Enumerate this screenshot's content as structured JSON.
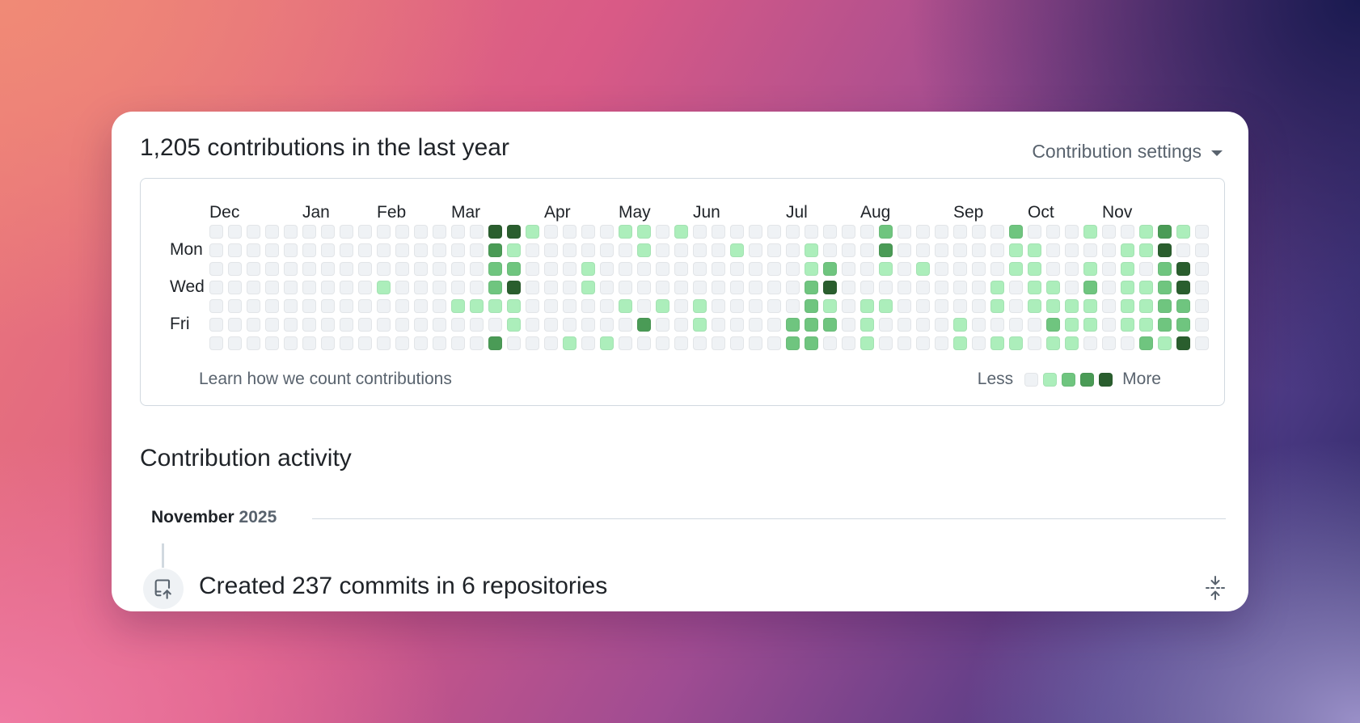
{
  "header": {
    "title": "1,205 contributions in the last year",
    "settings_label": "Contribution settings"
  },
  "graph": {
    "months": [
      "Dec",
      "Jan",
      "Feb",
      "Mar",
      "Apr",
      "May",
      "Jun",
      "Jul",
      "Aug",
      "Sep",
      "Oct",
      "Nov"
    ],
    "month_start_week": [
      0,
      5,
      9,
      13,
      18,
      22,
      26,
      31,
      35,
      40,
      44,
      48
    ],
    "day_labels": [
      {
        "row": 1,
        "label": "Mon"
      },
      {
        "row": 3,
        "label": "Wed"
      },
      {
        "row": 5,
        "label": "Fri"
      }
    ],
    "level_colors": [
      "#eff2f5",
      "#aceebb",
      "#6fc57f",
      "#4a9b56",
      "#2a5e2e"
    ],
    "weeks": [
      [
        0,
        0,
        0,
        0,
        0,
        0,
        0
      ],
      [
        0,
        0,
        0,
        0,
        0,
        0,
        0
      ],
      [
        0,
        0,
        0,
        0,
        0,
        0,
        0
      ],
      [
        0,
        0,
        0,
        0,
        0,
        0,
        0
      ],
      [
        0,
        0,
        0,
        0,
        0,
        0,
        0
      ],
      [
        0,
        0,
        0,
        0,
        0,
        0,
        0
      ],
      [
        0,
        0,
        0,
        0,
        0,
        0,
        0
      ],
      [
        0,
        0,
        0,
        0,
        0,
        0,
        0
      ],
      [
        0,
        0,
        0,
        0,
        0,
        0,
        0
      ],
      [
        0,
        0,
        0,
        1,
        0,
        0,
        0
      ],
      [
        0,
        0,
        0,
        0,
        0,
        0,
        0
      ],
      [
        0,
        0,
        0,
        0,
        0,
        0,
        0
      ],
      [
        0,
        0,
        0,
        0,
        0,
        0,
        0
      ],
      [
        0,
        0,
        0,
        0,
        1,
        0,
        0
      ],
      [
        0,
        0,
        0,
        0,
        1,
        0,
        0
      ],
      [
        4,
        3,
        2,
        2,
        1,
        0,
        3
      ],
      [
        4,
        1,
        2,
        4,
        1,
        1,
        0
      ],
      [
        1,
        0,
        0,
        0,
        0,
        0,
        0
      ],
      [
        0,
        0,
        0,
        0,
        0,
        0,
        0
      ],
      [
        0,
        0,
        0,
        0,
        0,
        0,
        1
      ],
      [
        0,
        0,
        1,
        1,
        0,
        0,
        0
      ],
      [
        0,
        0,
        0,
        0,
        0,
        0,
        1
      ],
      [
        1,
        0,
        0,
        0,
        1,
        0,
        0
      ],
      [
        1,
        1,
        0,
        0,
        0,
        3,
        0
      ],
      [
        0,
        0,
        0,
        0,
        1,
        0,
        0
      ],
      [
        1,
        0,
        0,
        0,
        0,
        0,
        0
      ],
      [
        0,
        0,
        0,
        0,
        1,
        1,
        0
      ],
      [
        0,
        0,
        0,
        0,
        0,
        0,
        0
      ],
      [
        0,
        1,
        0,
        0,
        0,
        0,
        0
      ],
      [
        0,
        0,
        0,
        0,
        0,
        0,
        0
      ],
      [
        0,
        0,
        0,
        0,
        0,
        0,
        0
      ],
      [
        0,
        0,
        0,
        0,
        0,
        2,
        2
      ],
      [
        0,
        1,
        1,
        2,
        2,
        2,
        2
      ],
      [
        0,
        0,
        2,
        4,
        1,
        2,
        0
      ],
      [
        0,
        0,
        0,
        0,
        0,
        0,
        0
      ],
      [
        0,
        0,
        0,
        0,
        1,
        1,
        1
      ],
      [
        2,
        3,
        1,
        0,
        1,
        0,
        0
      ],
      [
        0,
        0,
        0,
        0,
        0,
        0,
        0
      ],
      [
        0,
        0,
        1,
        0,
        0,
        0,
        0
      ],
      [
        0,
        0,
        0,
        0,
        0,
        0,
        0
      ],
      [
        0,
        0,
        0,
        0,
        0,
        1,
        1
      ],
      [
        0,
        0,
        0,
        0,
        0,
        0,
        0
      ],
      [
        0,
        0,
        0,
        1,
        1,
        0,
        1
      ],
      [
        2,
        1,
        1,
        0,
        0,
        0,
        1
      ],
      [
        0,
        1,
        1,
        1,
        1,
        0,
        0
      ],
      [
        0,
        0,
        0,
        1,
        1,
        2,
        1
      ],
      [
        0,
        0,
        0,
        0,
        1,
        1,
        1
      ],
      [
        1,
        0,
        1,
        2,
        1,
        1,
        0
      ],
      [
        0,
        0,
        0,
        0,
        0,
        0,
        0
      ],
      [
        0,
        1,
        1,
        1,
        1,
        1,
        0
      ],
      [
        1,
        1,
        0,
        1,
        1,
        1,
        2
      ],
      [
        3,
        4,
        2,
        2,
        2,
        2,
        1
      ],
      [
        1,
        0,
        4,
        4,
        2,
        2,
        4
      ],
      [
        0,
        0,
        0,
        0,
        0,
        0,
        0
      ]
    ],
    "learn_link": "Learn how we count contributions",
    "legend_less": "Less",
    "legend_more": "More"
  },
  "activity": {
    "title": "Contribution activity",
    "month": "November",
    "year": "2025",
    "commit_summary": "Created 237 commits in 6 repositories"
  },
  "icons": {
    "settings_caret": "caret-down-icon",
    "commit": "repo-push-icon",
    "collapse": "fold-icon"
  }
}
